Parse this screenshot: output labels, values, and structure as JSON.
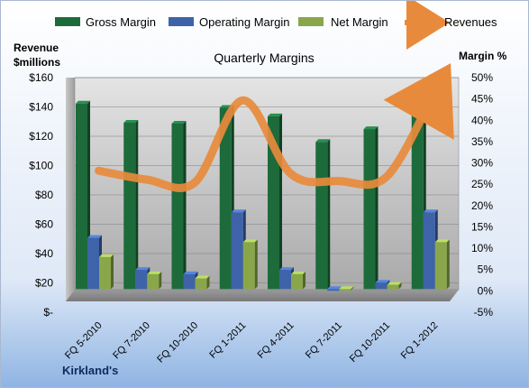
{
  "chart_data": {
    "type": "bar",
    "title": "Quarterly Margins",
    "left_axis_label": [
      "Revenue",
      "$millions"
    ],
    "right_axis_label": "Margin %",
    "footer": "Kirkland's",
    "categories": [
      "FQ 5-2010",
      "FQ 7-2010",
      "FQ 10-2010",
      "FQ 1-2011",
      "FQ 4-2011",
      "FQ 7-2011",
      "FQ 10-2011",
      "FQ 1-2012"
    ],
    "left_ticks": [
      "$-",
      "$20",
      "$40",
      "$60",
      "$80",
      "$100",
      "$120",
      "$140",
      "$160"
    ],
    "right_ticks": [
      "-5%",
      "0%",
      "5%",
      "10%",
      "15%",
      "20%",
      "25%",
      "30%",
      "35%",
      "40%",
      "45%",
      "50%"
    ],
    "left_range": [
      0,
      160
    ],
    "right_range": [
      -5,
      50
    ],
    "series": [
      {
        "name": "Gross Margin",
        "axis": "right",
        "kind": "bar",
        "color": "#1d6b3a",
        "values": [
          43.5,
          39,
          38.8,
          42.5,
          40.5,
          34.5,
          37.5,
          43
        ]
      },
      {
        "name": "Operating Margin",
        "axis": "right",
        "kind": "bar",
        "color": "#3e63a8",
        "values": [
          12,
          4.5,
          3.5,
          18,
          4.5,
          -0.4,
          1.5,
          18
        ]
      },
      {
        "name": "Net Margin",
        "axis": "right",
        "kind": "bar",
        "color": "#8aa64a",
        "values": [
          7.5,
          3.5,
          2.5,
          11,
          3.5,
          -0.2,
          1,
          11
        ]
      },
      {
        "name": "Revenues",
        "axis": "left",
        "kind": "line",
        "color": "#e88a3c",
        "values": [
          94,
          88,
          86,
          142,
          92,
          87,
          90,
          148
        ]
      }
    ]
  }
}
